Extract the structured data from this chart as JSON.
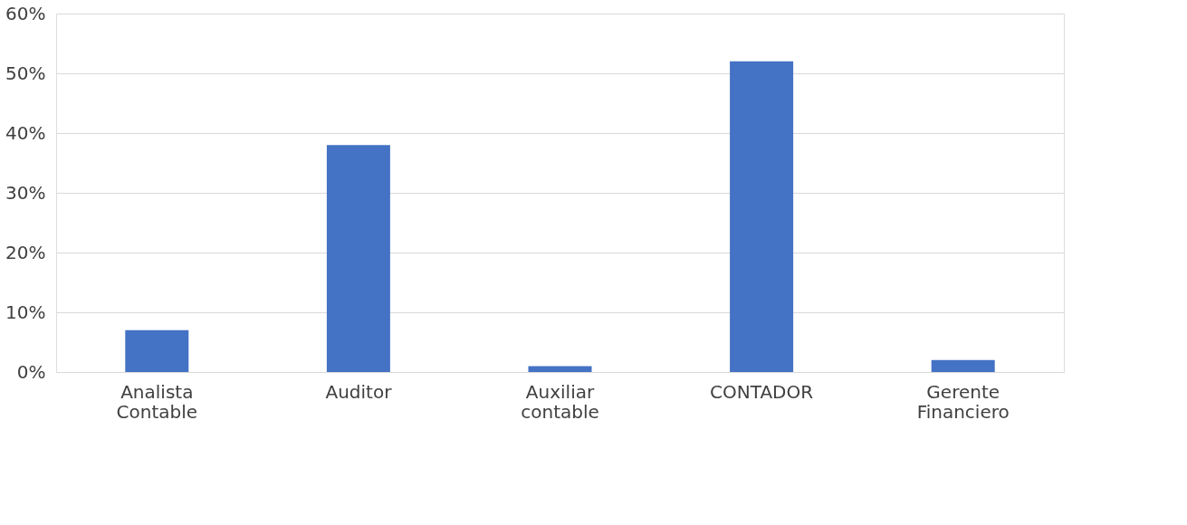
{
  "chart_data": {
    "type": "bar",
    "categories": [
      "Analista Contable",
      "Auditor",
      "Auxiliar contable",
      "CONTADOR",
      "Gerente Financiero"
    ],
    "values": [
      7,
      38,
      1,
      52,
      2
    ],
    "color": "#4472c4",
    "ylim": [
      0,
      60
    ],
    "yticks": [
      {
        "value": 0,
        "label": "0%"
      },
      {
        "value": 10,
        "label": "10%"
      },
      {
        "value": 20,
        "label": "20%"
      },
      {
        "value": 30,
        "label": "30%"
      },
      {
        "value": 40,
        "label": "40%"
      },
      {
        "value": 50,
        "label": "50%"
      },
      {
        "value": 60,
        "label": "60%"
      }
    ],
    "grid": "y"
  }
}
